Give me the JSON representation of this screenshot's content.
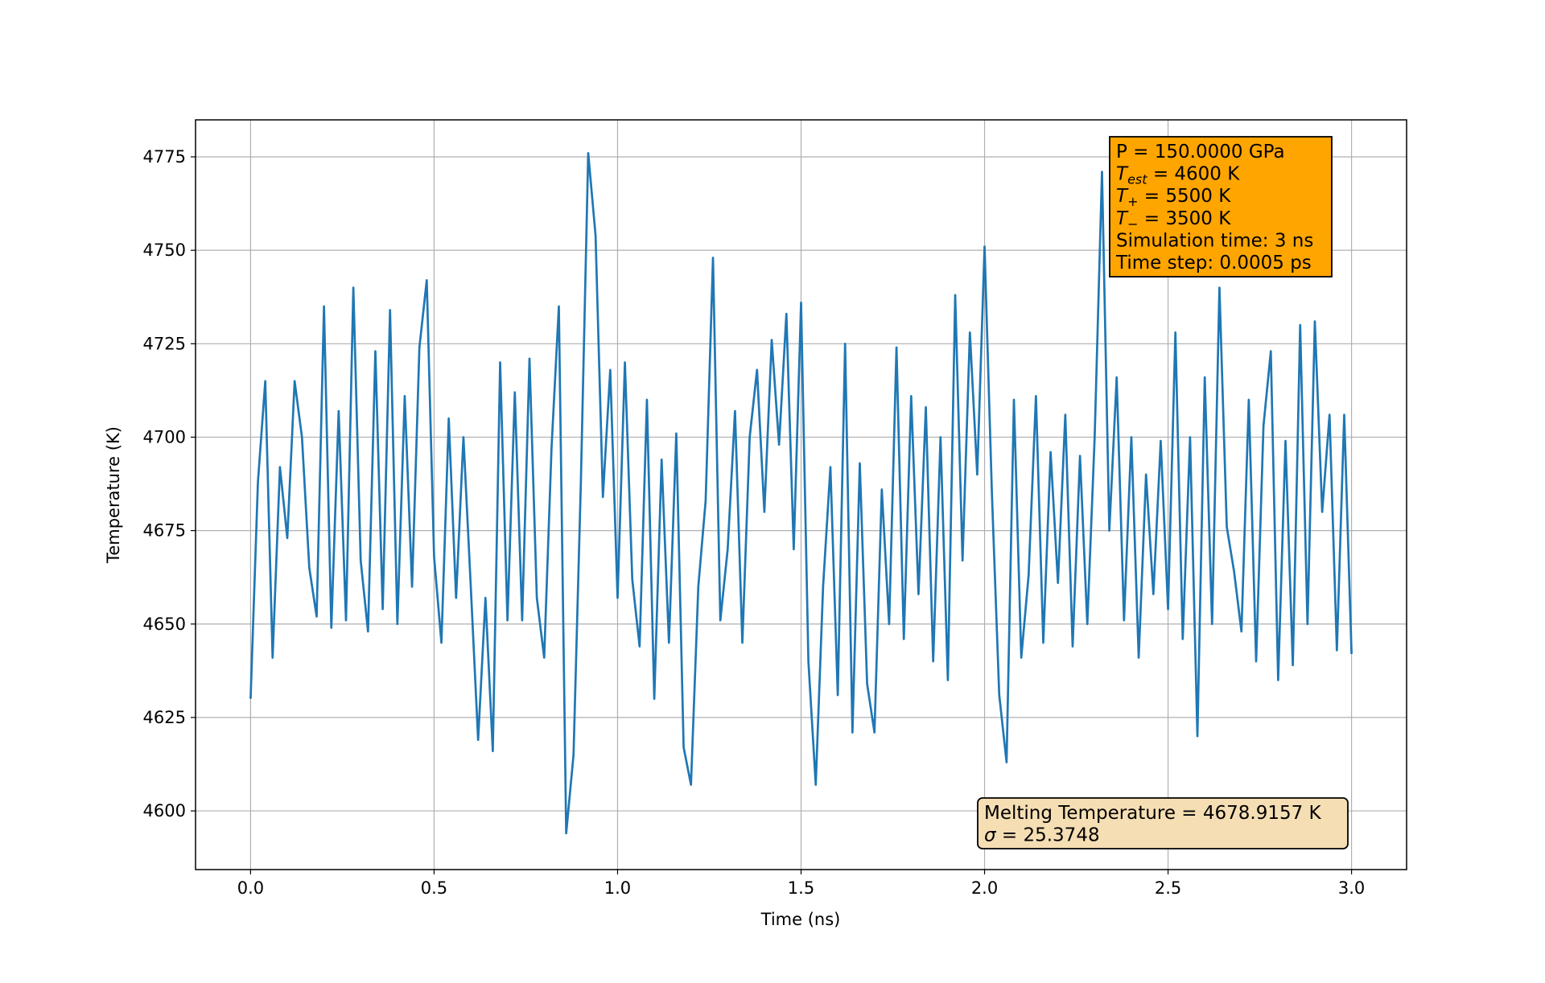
{
  "chart_data": {
    "type": "line",
    "x_label": "Time (ns)",
    "y_label": "Temperature (K)",
    "x": [
      0,
      0.02,
      0.04,
      0.06,
      0.08,
      0.1,
      0.12,
      0.14,
      0.16,
      0.18,
      0.2,
      0.22,
      0.24,
      0.26,
      0.28,
      0.3,
      0.32,
      0.34,
      0.36,
      0.38,
      0.4,
      0.42,
      0.44,
      0.46,
      0.48,
      0.5,
      0.52,
      0.54,
      0.56,
      0.58,
      0.6,
      0.62,
      0.64,
      0.66,
      0.68,
      0.7,
      0.72,
      0.74,
      0.76,
      0.78,
      0.8,
      0.82,
      0.84,
      0.86,
      0.88,
      0.9,
      0.92,
      0.94,
      0.96,
      0.98,
      1,
      1.02,
      1.04,
      1.06,
      1.08,
      1.1,
      1.12,
      1.14,
      1.16,
      1.18,
      1.2,
      1.22,
      1.24,
      1.26,
      1.28,
      1.3,
      1.32,
      1.34,
      1.36,
      1.38,
      1.4,
      1.42,
      1.44,
      1.46,
      1.48,
      1.5,
      1.52,
      1.54,
      1.56,
      1.58,
      1.6,
      1.62,
      1.64,
      1.66,
      1.68,
      1.7,
      1.72,
      1.74,
      1.76,
      1.78,
      1.8,
      1.82,
      1.84,
      1.86,
      1.88,
      1.9,
      1.92,
      1.94,
      1.96,
      1.98,
      2,
      2.02,
      2.04,
      2.06,
      2.08,
      2.1,
      2.12,
      2.14,
      2.16,
      2.18,
      2.2,
      2.22,
      2.24,
      2.26,
      2.28,
      2.3,
      2.32,
      2.34,
      2.36,
      2.38,
      2.4,
      2.42,
      2.44,
      2.46,
      2.48,
      2.5,
      2.52,
      2.54,
      2.56,
      2.58,
      2.6,
      2.62,
      2.64,
      2.66,
      2.68,
      2.7,
      2.72,
      2.74,
      2.76,
      2.78,
      2.8,
      2.82,
      2.84,
      2.86,
      2.88,
      2.9,
      2.92,
      2.94,
      2.96,
      2.98,
      3
    ],
    "values": [
      4630,
      4688,
      4715,
      4641,
      4692,
      4673,
      4715,
      4700,
      4665,
      4652,
      4735,
      4649,
      4707,
      4651,
      4740,
      4667,
      4648,
      4723,
      4654,
      4734,
      4650,
      4711,
      4660,
      4724,
      4742,
      4668,
      4645,
      4705,
      4657,
      4700,
      4660,
      4619,
      4657,
      4616,
      4720,
      4651,
      4712,
      4651,
      4721,
      4657,
      4641,
      4697,
      4735,
      4594,
      4615,
      4688,
      4776,
      4754,
      4684,
      4718,
      4657,
      4720,
      4662,
      4644,
      4710,
      4630,
      4694,
      4645,
      4701,
      4617,
      4607,
      4660,
      4683,
      4748,
      4651,
      4670,
      4707,
      4645,
      4700,
      4718,
      4680,
      4726,
      4698,
      4733,
      4670,
      4736,
      4640,
      4607,
      4660,
      4692,
      4631,
      4725,
      4621,
      4693,
      4634,
      4621,
      4686,
      4650,
      4724,
      4646,
      4711,
      4658,
      4708,
      4640,
      4700,
      4635,
      4738,
      4667,
      4728,
      4690,
      4751,
      4685,
      4631,
      4613,
      4710,
      4641,
      4663,
      4711,
      4645,
      4696,
      4661,
      4706,
      4644,
      4695,
      4650,
      4700,
      4771,
      4675,
      4716,
      4651,
      4700,
      4641,
      4690,
      4658,
      4699,
      4654,
      4728,
      4646,
      4700,
      4620,
      4716,
      4650,
      4740,
      4676,
      4664,
      4648,
      4710,
      4640,
      4703,
      4723,
      4635,
      4699,
      4639,
      4730,
      4650,
      4731,
      4680,
      4706,
      4643,
      4706,
      4642
    ],
    "color": "#1f77b4",
    "xlim": [
      -0.15,
      3.15
    ],
    "xticks": [
      {
        "value": 0,
        "label": "0.0"
      },
      0.5,
      {
        "value": 1,
        "label": "1.0"
      },
      1.5,
      {
        "value": 2,
        "label": "2.0"
      },
      2.5,
      {
        "value": 3,
        "label": "3.0"
      }
    ],
    "ylim": [
      4584.3,
      4784.9
    ],
    "yticks": [
      4600,
      4625,
      4650,
      4675,
      4700,
      4725,
      4750,
      4775
    ],
    "grid": true,
    "parameter_box": {
      "color": "#ffa500",
      "lines": [
        [
          {
            "text": "P = 150.0000 GPa"
          }
        ],
        [
          {
            "text": "T",
            "style": "italic"
          },
          {
            "text": "est",
            "style": "subscript"
          },
          {
            "text": " = 4600 K"
          }
        ],
        [
          {
            "text": "T",
            "style": "italic"
          },
          {
            "text": "+",
            "style": "subscript"
          },
          {
            "text": " = 5500 K"
          }
        ],
        [
          {
            "text": "T",
            "style": "italic"
          },
          {
            "text": "−",
            "style": "subscript"
          },
          {
            "text": " = 3500 K"
          }
        ],
        [
          {
            "text": "Simulation time: 3 ns"
          }
        ],
        [
          {
            "text": "Time step: 0.0005 ps"
          }
        ]
      ]
    },
    "result_box": {
      "color": "#f5deb3",
      "lines": [
        [
          {
            "text": "Melting Temperature = 4678.9157 K"
          }
        ],
        [
          {
            "text": "σ",
            "style": "italic"
          },
          {
            "text": " = 25.3748"
          }
        ]
      ]
    }
  }
}
